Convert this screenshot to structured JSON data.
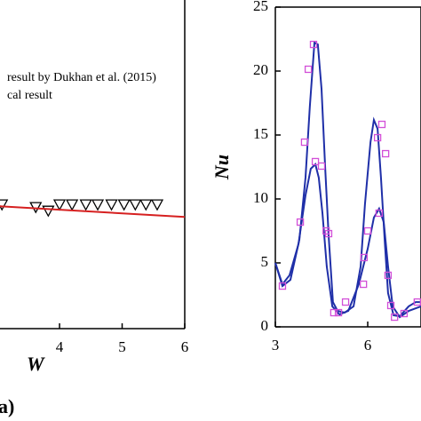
{
  "chart_data": [
    {
      "type": "line",
      "legend": [
        "result by Dukhan et al. (2015)",
        "cal result"
      ],
      "xlabel": "W",
      "panel": "a)",
      "xlim": [
        2.9,
        6
      ],
      "xticks": [
        4,
        5,
        6
      ],
      "ylim": [
        0,
        1
      ],
      "series": [
        {
          "marker": "triangle",
          "color": "#000000",
          "x": [
            3.08,
            3.62,
            3.82,
            4.0,
            4.2,
            4.42,
            4.61,
            4.83,
            5.03,
            5.21,
            5.38,
            5.56
          ],
          "values": [
            0.376,
            0.368,
            0.357,
            0.376,
            0.376,
            0.376,
            0.376,
            0.376,
            0.376,
            0.376,
            0.376,
            0.376
          ]
        },
        {
          "marker": "none",
          "color": "#d62020",
          "x": [
            2.9,
            6
          ],
          "values": [
            0.372,
            0.338
          ]
        }
      ]
    },
    {
      "type": "line",
      "ylabel": "Nu",
      "xlim": [
        3,
        7.73
      ],
      "xticks": [
        3,
        6
      ],
      "ylim": [
        0,
        25
      ],
      "yticks": [
        0,
        5,
        10,
        15,
        20,
        25
      ],
      "series": [
        {
          "marker": "none",
          "color": "#1f2fa8",
          "x": [
            3.0,
            3.23,
            3.49,
            3.78,
            3.98,
            4.12,
            4.27,
            4.38,
            4.5,
            4.62,
            4.73,
            4.87,
            5.02,
            5.25,
            5.54,
            5.77,
            5.91,
            6.09,
            6.2,
            6.32,
            6.43,
            6.55,
            6.66,
            6.84,
            7.04,
            7.33,
            7.56,
            7.73
          ],
          "values": [
            5.0,
            3.19,
            3.68,
            6.81,
            11.67,
            17.22,
            22.22,
            22.08,
            18.61,
            12.36,
            7.15,
            1.94,
            1.25,
            1.11,
            1.6,
            4.72,
            9.58,
            14.44,
            16.18,
            15.49,
            11.67,
            6.81,
            2.64,
            0.9,
            0.83,
            1.6,
            1.94,
            1.94
          ]
        },
        {
          "marker": "none",
          "color": "#1f2fa8",
          "x": [
            3.0,
            3.23,
            3.46,
            3.75,
            3.98,
            4.15,
            4.3,
            4.41,
            4.53,
            4.67,
            4.85,
            5.08,
            5.37,
            5.71,
            6.0,
            6.2,
            6.37,
            6.52,
            6.66,
            6.81,
            7.04,
            7.33,
            7.73
          ],
          "values": [
            5.0,
            3.33,
            4.03,
            6.46,
            10.28,
            12.36,
            12.71,
            11.67,
            8.89,
            4.72,
            1.6,
            0.97,
            1.25,
            3.33,
            6.11,
            8.54,
            9.24,
            8.19,
            4.72,
            1.6,
            0.76,
            1.25,
            1.6
          ]
        },
        {
          "marker": "square",
          "color": "#d24fd8",
          "x": [
            3.23,
            3.81,
            3.95,
            4.07,
            4.24,
            4.3,
            4.5,
            4.65,
            4.73,
            4.9,
            5.05,
            5.28,
            5.86,
            5.88,
            6.0,
            6.32,
            6.37,
            6.46,
            6.58,
            6.66,
            6.75,
            6.87,
            7.18,
            7.61
          ],
          "values": [
            3.19,
            8.19,
            14.44,
            20.14,
            22.08,
            12.92,
            12.57,
            7.5,
            7.29,
            1.11,
            1.11,
            1.94,
            3.33,
            5.42,
            7.5,
            14.79,
            8.89,
            15.83,
            13.54,
            4.03,
            1.67,
            0.76,
            1.04,
            1.94
          ]
        }
      ]
    }
  ]
}
